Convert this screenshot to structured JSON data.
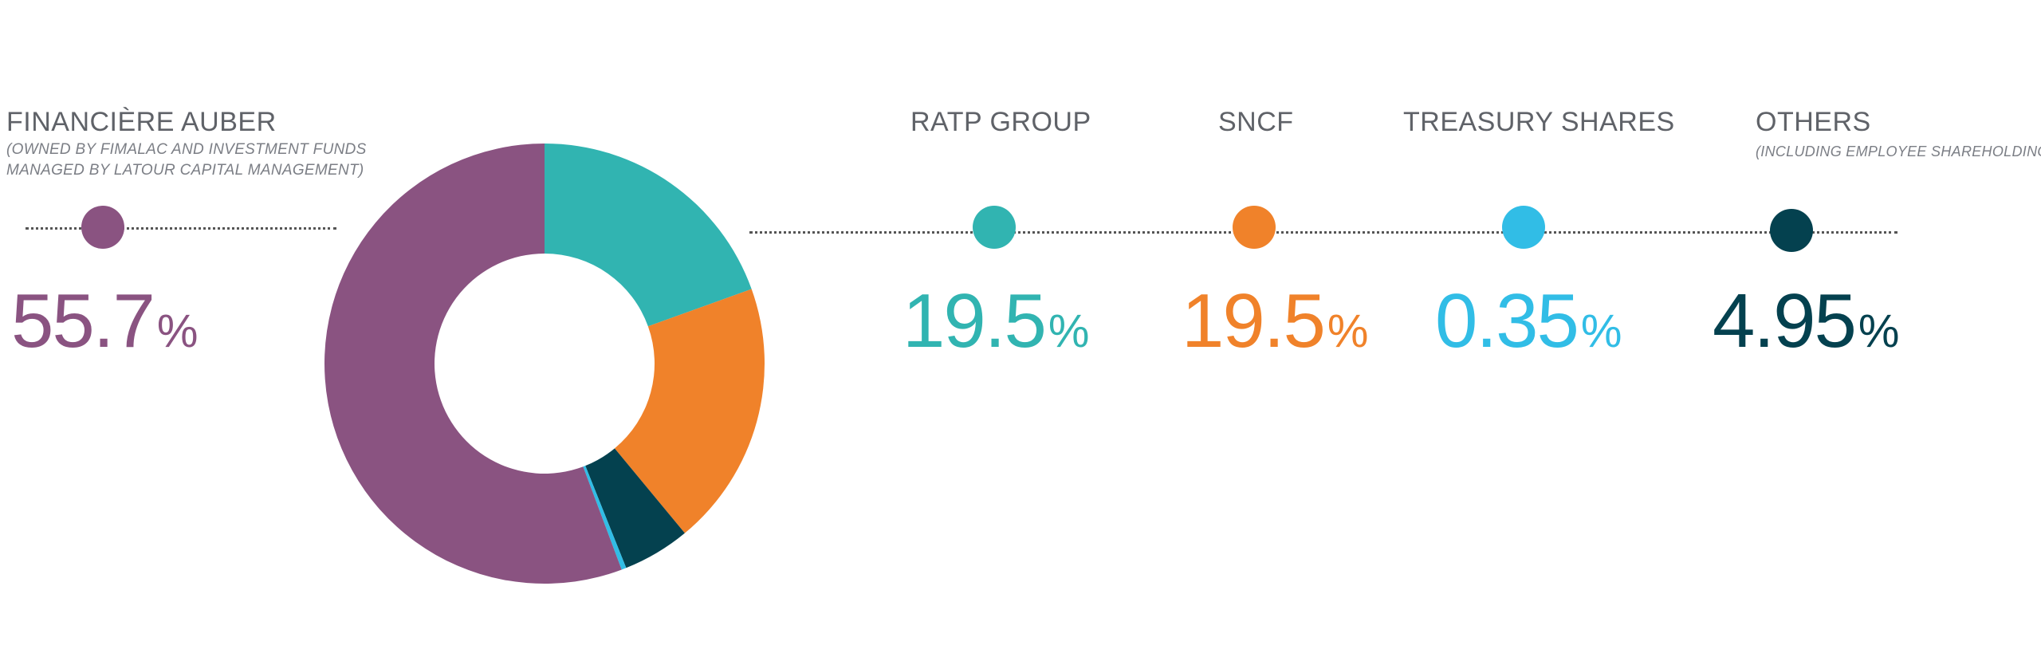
{
  "chart_data": {
    "type": "pie",
    "categories": [
      "FINANCIÈRE AUBER",
      "RATP GROUP",
      "SNCF",
      "TREASURY SHARES",
      "OTHERS"
    ],
    "values": [
      55.7,
      19.5,
      19.5,
      0.35,
      4.95
    ],
    "unit": "%",
    "colors": [
      "#8a5381",
      "#31b4b1",
      "#f0822a",
      "#31bde6",
      "#04414f"
    ],
    "pie_order": [
      1,
      2,
      4,
      3,
      0
    ],
    "donut": true,
    "legend": {
      "financiere": {
        "label": "FINANCIÈRE AUBER",
        "sub1": "(OWNED BY FIMALAC AND INVESTMENT FUNDS",
        "sub2": "MANAGED BY LATOUR CAPITAL MANAGEMENT)",
        "value": "55.7",
        "pct": "%"
      },
      "ratp": {
        "label": "RATP GROUP",
        "value": "19.5",
        "pct": "%"
      },
      "sncf": {
        "label": "SNCF",
        "value": "19.5",
        "pct": "%"
      },
      "treasury": {
        "label": "TREASURY SHARES",
        "value": "0.35",
        "pct": "%"
      },
      "others": {
        "label": "OTHERS",
        "sub1": "(INCLUDING EMPLOYEE SHAREHOLDING)",
        "value": "4.95",
        "pct": "%"
      }
    }
  }
}
